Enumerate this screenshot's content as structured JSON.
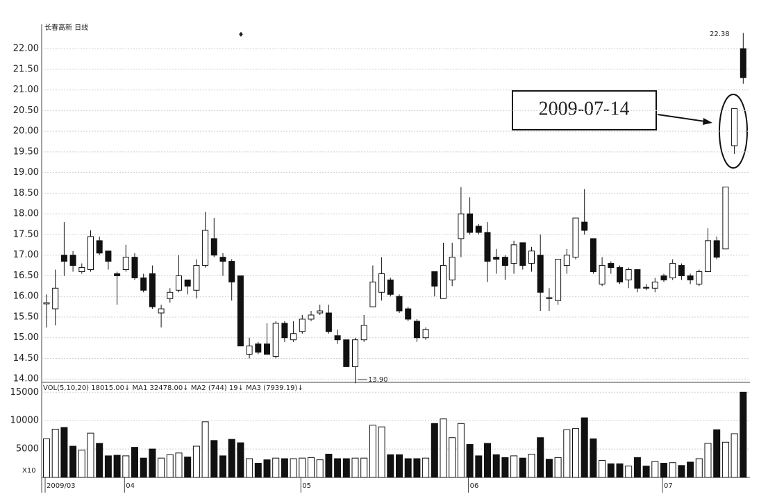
{
  "chart_data": [
    {
      "type": "candlestick",
      "title": "长春高新 日线",
      "categories": [
        "2009/03",
        null,
        null,
        null,
        null,
        null,
        null,
        null,
        null,
        "04",
        null,
        null,
        null,
        null,
        null,
        null,
        null,
        null,
        null,
        null,
        null,
        null,
        null,
        null,
        null,
        null,
        null,
        null,
        null,
        "05",
        null,
        null,
        null,
        null,
        null,
        null,
        null,
        null,
        null,
        null,
        null,
        null,
        null,
        null,
        null,
        null,
        null,
        null,
        "06",
        null,
        null,
        null,
        null,
        null,
        null,
        null,
        null,
        null,
        null,
        null,
        null,
        null,
        null,
        null,
        null,
        null,
        null,
        null,
        null,
        null,
        "07",
        null,
        null,
        null,
        null,
        null,
        null,
        null,
        null,
        null
      ],
      "open": [
        15.82,
        15.7,
        17.0,
        17.0,
        16.6,
        16.65,
        17.35,
        17.1,
        16.55,
        16.65,
        16.95,
        16.45,
        16.55,
        15.6,
        15.95,
        16.15,
        16.4,
        16.15,
        16.75,
        17.4,
        16.95,
        16.85,
        16.5,
        14.6,
        14.85,
        14.85,
        14.55,
        15.35,
        14.95,
        15.15,
        15.45,
        15.6,
        15.6,
        15.05,
        14.95,
        14.3,
        14.95,
        15.75,
        16.1,
        16.4,
        16.0,
        15.7,
        15.4,
        15.0,
        16.6,
        15.95,
        16.4,
        17.4,
        18.0,
        17.7,
        17.55,
        16.95,
        16.95,
        16.8,
        17.3,
        16.8,
        17.0,
        15.97,
        15.9,
        16.75,
        16.95,
        17.8,
        17.4,
        16.3,
        16.8,
        16.7,
        16.4,
        16.65,
        16.22,
        16.2,
        16.5,
        16.45,
        16.75,
        16.5,
        16.3,
        16.6,
        17.35,
        17.15,
        19.65,
        22.0
      ],
      "high": [
        16.05,
        16.65,
        17.8,
        17.1,
        16.8,
        17.6,
        17.45,
        17.1,
        16.6,
        17.25,
        17.05,
        16.55,
        16.75,
        15.8,
        16.2,
        17.0,
        16.4,
        16.9,
        18.05,
        17.9,
        17.05,
        16.9,
        16.5,
        15.0,
        14.9,
        15.35,
        15.4,
        15.4,
        15.4,
        15.55,
        15.65,
        15.8,
        15.8,
        15.2,
        14.95,
        15.0,
        15.55,
        16.75,
        16.95,
        16.45,
        16.05,
        15.75,
        15.45,
        15.25,
        16.6,
        17.3,
        17.3,
        18.65,
        18.4,
        17.75,
        17.8,
        17.15,
        17.0,
        17.35,
        17.3,
        17.2,
        17.5,
        16.2,
        16.9,
        17.15,
        17.9,
        18.6,
        17.4,
        16.95,
        16.85,
        16.75,
        16.7,
        16.65,
        16.3,
        16.45,
        16.55,
        16.9,
        16.8,
        16.55,
        16.65,
        17.65,
        17.45,
        18.65,
        20.55,
        22.38
      ],
      "low": [
        15.25,
        15.3,
        16.5,
        16.6,
        16.55,
        16.6,
        17.0,
        16.65,
        15.8,
        16.6,
        16.4,
        16.1,
        15.7,
        15.25,
        15.85,
        16.1,
        16.05,
        15.95,
        16.7,
        16.95,
        16.5,
        15.9,
        14.8,
        14.5,
        14.6,
        14.6,
        14.5,
        14.9,
        14.9,
        15.1,
        15.4,
        15.55,
        15.1,
        14.85,
        14.3,
        13.9,
        14.9,
        15.75,
        15.9,
        16.0,
        15.6,
        15.4,
        14.9,
        14.95,
        16.0,
        15.95,
        16.25,
        16.95,
        17.5,
        17.5,
        16.35,
        16.55,
        16.4,
        16.55,
        16.65,
        16.6,
        15.65,
        15.65,
        15.8,
        16.55,
        16.9,
        17.5,
        16.55,
        16.25,
        16.55,
        16.3,
        16.2,
        16.1,
        16.15,
        16.1,
        16.35,
        16.4,
        16.4,
        16.3,
        16.25,
        16.6,
        16.9,
        17.15,
        19.45,
        21.15
      ],
      "close": [
        15.85,
        16.2,
        16.85,
        16.75,
        16.7,
        17.45,
        17.05,
        16.85,
        16.5,
        16.95,
        16.45,
        16.15,
        15.75,
        15.7,
        16.1,
        16.5,
        16.25,
        16.75,
        17.6,
        17.0,
        16.85,
        16.35,
        14.8,
        14.8,
        14.65,
        14.6,
        15.35,
        15.0,
        15.1,
        15.45,
        15.55,
        15.65,
        15.15,
        14.95,
        14.3,
        14.95,
        15.3,
        16.35,
        16.55,
        16.05,
        15.65,
        15.45,
        15.0,
        15.2,
        16.25,
        16.75,
        16.95,
        18.0,
        17.55,
        17.55,
        16.85,
        16.9,
        16.75,
        17.25,
        16.75,
        17.1,
        16.1,
        15.95,
        16.9,
        17.0,
        17.9,
        17.6,
        16.6,
        16.75,
        16.7,
        16.35,
        16.65,
        16.2,
        16.2,
        16.35,
        16.4,
        16.8,
        16.5,
        16.4,
        16.6,
        17.35,
        16.95,
        18.65,
        20.55,
        21.3
      ],
      "ylim": [
        13.92,
        22.59
      ],
      "yticks": [
        {
          "value": 14,
          "label": "14.00"
        },
        {
          "value": 14.5,
          "label": "14.50"
        },
        {
          "value": 15,
          "label": "15.00"
        },
        {
          "value": 15.5,
          "label": "15.50"
        },
        {
          "value": 16,
          "label": "16.00"
        },
        {
          "value": 16.5,
          "label": "16.50"
        },
        {
          "value": 17,
          "label": "17.00"
        },
        {
          "value": 17.5,
          "label": "17.50"
        },
        {
          "value": 18,
          "label": "18.00"
        },
        {
          "value": 18.5,
          "label": "18.50"
        },
        {
          "value": 19,
          "label": "19.00"
        },
        {
          "value": 19.5,
          "label": "19.50"
        },
        {
          "value": 20,
          "label": "20.00"
        },
        {
          "value": 20.5,
          "label": "20.50"
        },
        {
          "value": 21,
          "label": "21.00"
        },
        {
          "value": 21.5,
          "label": "21.50"
        },
        {
          "value": 22,
          "label": "22.00"
        }
      ],
      "grid": true,
      "annotations": {
        "high": "22.38",
        "low": "13.90",
        "date": "2009-07-14"
      }
    },
    {
      "type": "volume",
      "title": "VOL(5,10,20)  18015.00↓  MA1  32478.00↓  MA2  (744)  19↓  MA3  (7939.19)↓",
      "values": [
        6800,
        8500,
        8800,
        5500,
        4800,
        7800,
        6000,
        3800,
        3900,
        3800,
        5300,
        3400,
        5000,
        3400,
        4000,
        4300,
        3600,
        5500,
        9800,
        6500,
        3800,
        6700,
        6100,
        3300,
        2500,
        3100,
        3400,
        3300,
        3300,
        3400,
        3500,
        3100,
        4100,
        3300,
        3300,
        3400,
        3400,
        9200,
        8900,
        4000,
        4000,
        3300,
        3300,
        3400,
        9500,
        10300,
        7000,
        9500,
        5800,
        3800,
        6000,
        4000,
        3500,
        3800,
        3400,
        4100,
        7000,
        3200,
        3500,
        8400,
        8600,
        10500,
        6800,
        3000,
        2400,
        2400,
        2000,
        3500,
        2000,
        2800,
        2500,
        2600,
        2100,
        2700,
        3300,
        6000,
        8400,
        6200,
        7700,
        15000
      ],
      "ylim": [
        0,
        16500
      ],
      "yticks": [
        5000,
        10000,
        15000
      ],
      "unit_label": "X10"
    }
  ]
}
